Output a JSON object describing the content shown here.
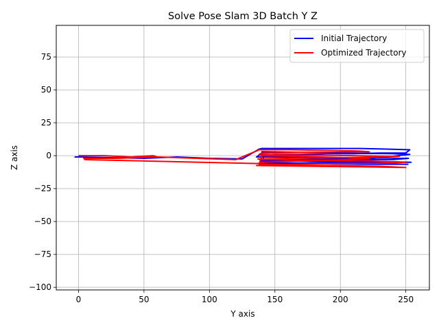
{
  "chart_data": {
    "type": "line",
    "title": "Solve Pose Slam 3D Batch Y Z",
    "xlabel": "Y axis",
    "ylabel": "Z axis",
    "xlim": [
      -17,
      268
    ],
    "ylim": [
      -102,
      99
    ],
    "xticks": [
      0,
      50,
      100,
      150,
      200,
      250
    ],
    "yticks": [
      -100,
      -75,
      -50,
      -25,
      0,
      25,
      50,
      75
    ],
    "grid": true,
    "legend_position": "top-right",
    "series": [
      {
        "name": "Initial Trajectory",
        "color": "#0000ff",
        "x": [
          -3,
          0,
          25,
          50,
          75,
          100,
          125,
          138,
          140,
          160,
          180,
          200,
          215,
          235,
          253,
          250,
          230,
          210,
          190,
          170,
          150,
          138,
          136,
          160,
          190,
          220,
          252,
          240,
          210,
          180,
          150,
          140,
          165,
          200,
          235,
          254,
          230,
          200,
          170,
          142,
          140,
          170,
          205,
          240,
          253,
          225,
          195,
          165,
          140,
          138,
          175,
          215,
          252
        ],
        "y": [
          -1,
          -1,
          -1.5,
          -2,
          -1,
          -2,
          -2.5,
          5,
          5.5,
          5.5,
          5.5,
          5.5,
          5.5,
          5,
          4.5,
          2,
          2,
          1.5,
          1.5,
          1,
          1,
          0.5,
          -1,
          -1,
          -1.5,
          -1.5,
          -2,
          -3,
          -3,
          -3.5,
          -3.5,
          -4,
          -4,
          -4.5,
          -4.5,
          -5,
          -5,
          -5,
          -5.5,
          -5.5,
          3,
          2.5,
          2,
          1.5,
          1,
          -2,
          -2.5,
          -3,
          -3.5,
          -6,
          -6,
          -6.5,
          -6.5
        ]
      },
      {
        "name": "Optimized Trajectory",
        "color": "#ff0000",
        "x": [
          0,
          20,
          40,
          57,
          60,
          90,
          120,
          137,
          138,
          160,
          190,
          215,
          222,
          200,
          170,
          140,
          138,
          170,
          210,
          245,
          235,
          200,
          160,
          137,
          139,
          180,
          220,
          250,
          240,
          200,
          165,
          140,
          136,
          175,
          215,
          250,
          230,
          195,
          160,
          138,
          140,
          185,
          222,
          205,
          170,
          140,
          137,
          5,
          4,
          30,
          60
        ],
        "y": [
          0,
          0,
          -1,
          0,
          -1,
          -2,
          -3,
          4,
          4.5,
          4.5,
          4,
          3.5,
          3,
          3,
          2.5,
          2,
          1,
          0.5,
          0,
          -0.5,
          -1,
          -1.5,
          -2,
          -2.5,
          -3,
          -3.5,
          -4,
          -5,
          -5.5,
          -6,
          -6.5,
          -7,
          -7.5,
          -8,
          -8.5,
          -9,
          -8,
          -7.5,
          -7,
          -6.5,
          0,
          -1,
          -2,
          -3,
          -4,
          -5,
          -6,
          -3,
          -2,
          -2,
          -1
        ]
      }
    ]
  }
}
